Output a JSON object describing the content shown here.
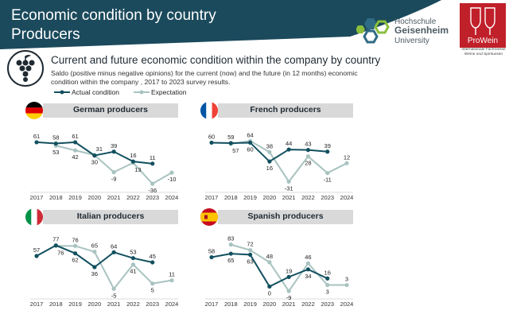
{
  "header": {
    "title_line1": "Economic condition by country",
    "title_line2": "Producers"
  },
  "logos": {
    "hochschule_line1": "Hochschule",
    "hochschule_line2": "Geisenheim",
    "hochschule_line3": "University",
    "prowein_name": "ProWein",
    "prowein_sub1": "Internationale Fachmesse",
    "prowein_sub2": "Weine und Spirituosen"
  },
  "subtitle": "Current and future economic condition within the company by country",
  "description": "Saldo (positive minus negative opinions) for the current (now) and the future (in 12 months) economic condition within the company , 2017 to 2023 survey results.",
  "colors": {
    "header": "#1b4a5c",
    "actual": "#12505f",
    "expectation": "#a8c3c0",
    "title_bar": "#d9d9d9",
    "prowein": "#c0202a"
  },
  "icons": {
    "grape": "grape-icon",
    "hochschule_logo": "hexagon-logo-icon",
    "prowein_logo": "wine-glass-icon"
  },
  "chart_data": [
    {
      "type": "line",
      "title": "German producers",
      "x": [
        "2017",
        "2018",
        "2019",
        "2020",
        "2021",
        "2022",
        "2023",
        "2024"
      ],
      "series": [
        {
          "name": "Actual condition",
          "values": [
            61,
            58,
            61,
            30,
            39,
            16,
            11,
            null
          ]
        },
        {
          "name": "Expectation",
          "values": [
            null,
            53,
            42,
            31,
            -9,
            13,
            -36,
            -10
          ]
        }
      ],
      "ylim": [
        -45,
        85
      ]
    },
    {
      "type": "line",
      "title": "French producers",
      "x": [
        "2017",
        "2018",
        "2019",
        "2020",
        "2021",
        "2022",
        "2023",
        "2024"
      ],
      "series": [
        {
          "name": "Actual condition",
          "values": [
            60,
            59,
            60,
            16,
            44,
            43,
            39,
            null
          ]
        },
        {
          "name": "Expectation",
          "values": [
            null,
            57,
            64,
            38,
            -31,
            28,
            -11,
            12
          ]
        }
      ],
      "ylim": [
        -45,
        85
      ]
    },
    {
      "type": "line",
      "title": "Italian producers",
      "x": [
        "2017",
        "2018",
        "2019",
        "2020",
        "2021",
        "2022",
        "2023",
        "2024"
      ],
      "series": [
        {
          "name": "Actual condition",
          "values": [
            57,
            77,
            62,
            36,
            64,
            53,
            45,
            null
          ]
        },
        {
          "name": "Expectation",
          "values": [
            null,
            76,
            76,
            65,
            -5,
            41,
            5,
            11
          ]
        }
      ],
      "ylim": [
        -15,
        90
      ]
    },
    {
      "type": "line",
      "title": "Spanish producers",
      "x": [
        "2017",
        "2018",
        "2019",
        "2020",
        "2021",
        "2022",
        "2023",
        "2024"
      ],
      "series": [
        {
          "name": "Actual condition",
          "values": [
            58,
            65,
            63,
            0,
            19,
            34,
            16,
            null
          ]
        },
        {
          "name": "Expectation",
          "values": [
            null,
            83,
            72,
            48,
            -9,
            46,
            3,
            3
          ]
        }
      ],
      "ylim": [
        -15,
        95
      ]
    }
  ]
}
